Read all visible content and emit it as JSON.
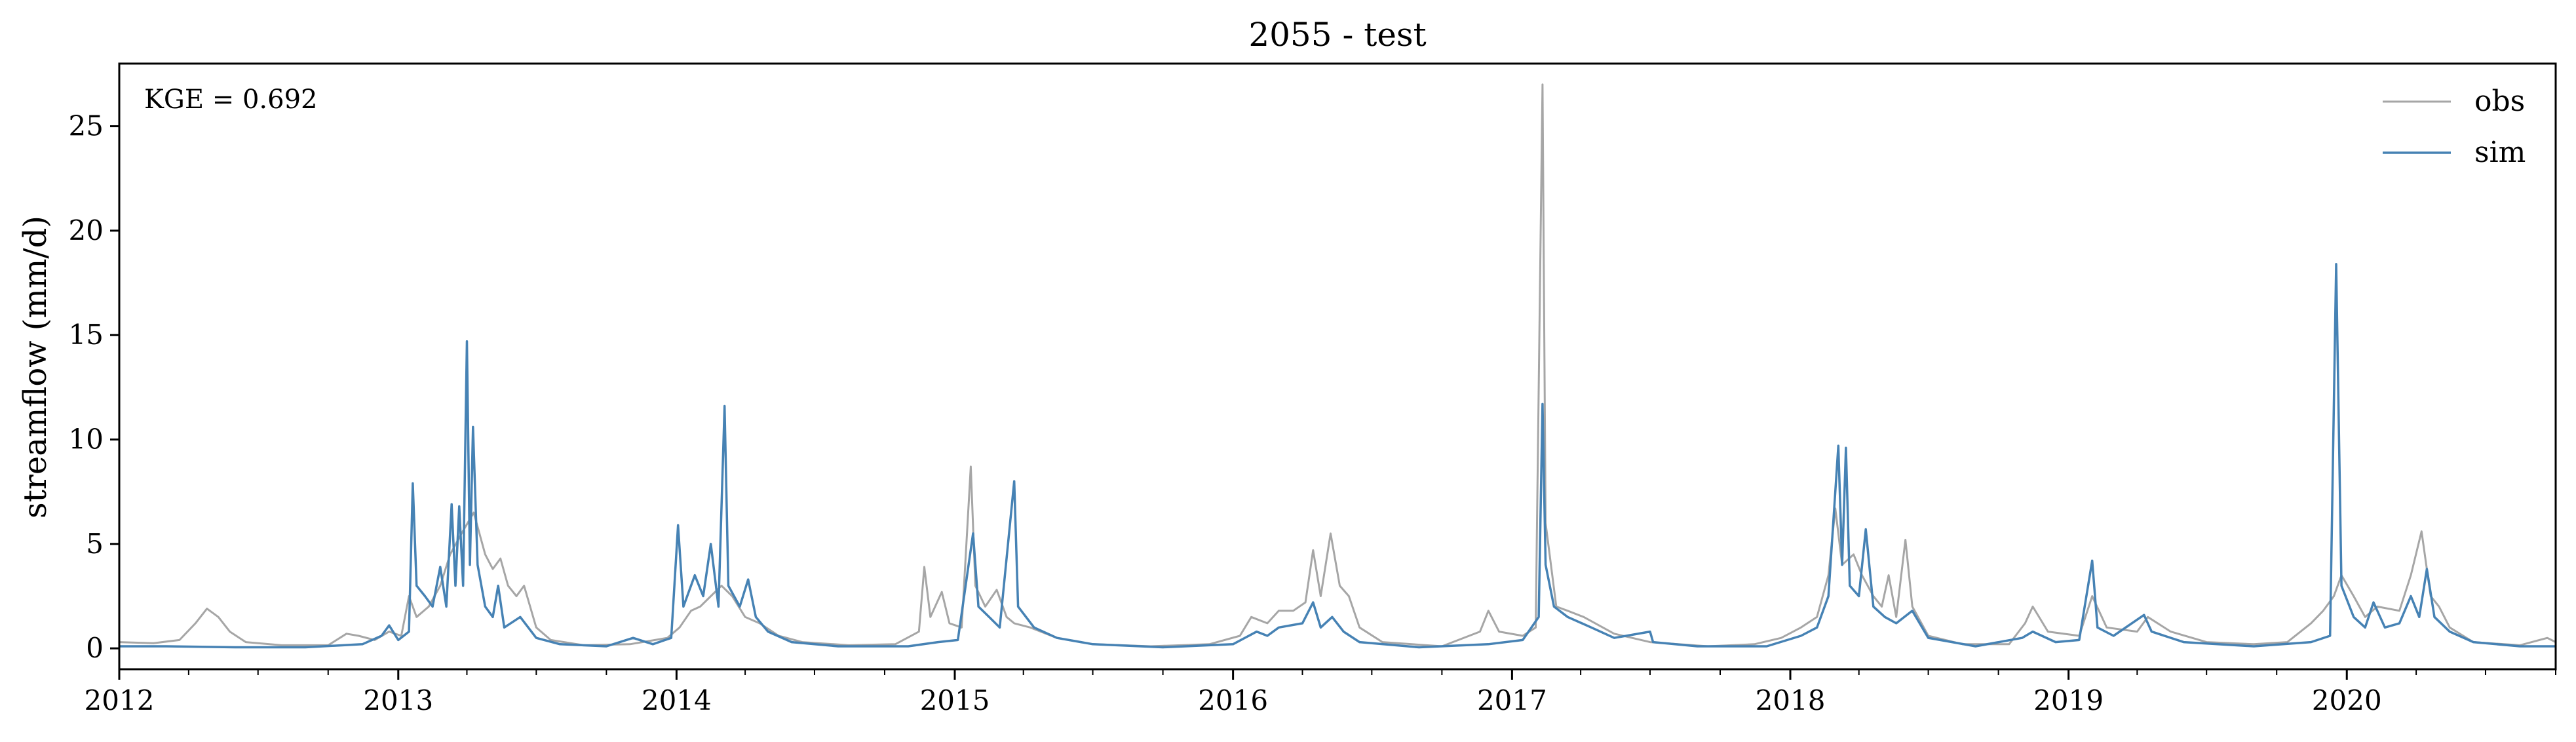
{
  "chart_data": {
    "type": "line",
    "title": "2055 - test",
    "xlabel": "",
    "ylabel": "streamflow (mm/d)",
    "annotation": "KGE = 0.692",
    "x_axis_type": "date",
    "xlim": [
      "2012-01-01",
      "2020-10-01"
    ],
    "ylim": [
      -1,
      28
    ],
    "x_ticks": [
      "2012",
      "2013",
      "2014",
      "2015",
      "2016",
      "2017",
      "2018",
      "2019",
      "2020"
    ],
    "y_ticks": [
      0,
      5,
      10,
      15,
      20,
      25
    ],
    "grid": false,
    "legend_position": "top-right",
    "series": [
      {
        "name": "obs",
        "color": "#a6a6a6",
        "points": [
          [
            "2012-01-01",
            0.3
          ],
          [
            "2012-02-15",
            0.25
          ],
          [
            "2012-03-20",
            0.4
          ],
          [
            "2012-04-10",
            1.2
          ],
          [
            "2012-04-25",
            1.9
          ],
          [
            "2012-05-10",
            1.5
          ],
          [
            "2012-05-25",
            0.8
          ],
          [
            "2012-06-15",
            0.3
          ],
          [
            "2012-08-01",
            0.15
          ],
          [
            "2012-10-01",
            0.15
          ],
          [
            "2012-10-25",
            0.7
          ],
          [
            "2012-11-10",
            0.6
          ],
          [
            "2012-12-01",
            0.4
          ],
          [
            "2012-12-20",
            0.8
          ],
          [
            "2013-01-05",
            0.6
          ],
          [
            "2013-01-15",
            2.5
          ],
          [
            "2013-01-25",
            1.5
          ],
          [
            "2013-02-10",
            2.0
          ],
          [
            "2013-02-25",
            3.0
          ],
          [
            "2013-03-10",
            4.5
          ],
          [
            "2013-03-25",
            5.5
          ],
          [
            "2013-04-10",
            6.5
          ],
          [
            "2013-04-25",
            4.5
          ],
          [
            "2013-05-05",
            3.8
          ],
          [
            "2013-05-15",
            4.3
          ],
          [
            "2013-05-25",
            3.0
          ],
          [
            "2013-06-05",
            2.5
          ],
          [
            "2013-06-15",
            3.0
          ],
          [
            "2013-07-01",
            1.0
          ],
          [
            "2013-07-20",
            0.4
          ],
          [
            "2013-09-01",
            0.15
          ],
          [
            "2013-11-01",
            0.2
          ],
          [
            "2013-12-20",
            0.5
          ],
          [
            "2014-01-05",
            1.0
          ],
          [
            "2014-01-20",
            1.8
          ],
          [
            "2014-02-01",
            2.0
          ],
          [
            "2014-02-15",
            2.5
          ],
          [
            "2014-03-01",
            3.0
          ],
          [
            "2014-03-15",
            2.5
          ],
          [
            "2014-04-01",
            1.5
          ],
          [
            "2014-04-20",
            1.2
          ],
          [
            "2014-05-15",
            0.6
          ],
          [
            "2014-06-15",
            0.3
          ],
          [
            "2014-08-15",
            0.15
          ],
          [
            "2014-10-15",
            0.2
          ],
          [
            "2014-11-15",
            0.8
          ],
          [
            "2014-11-22",
            3.9
          ],
          [
            "2014-11-30",
            1.5
          ],
          [
            "2014-12-15",
            2.7
          ],
          [
            "2014-12-25",
            1.2
          ],
          [
            "2015-01-10",
            1.0
          ],
          [
            "2015-01-22",
            8.7
          ],
          [
            "2015-01-28",
            3.0
          ],
          [
            "2015-02-10",
            2.0
          ],
          [
            "2015-02-25",
            2.8
          ],
          [
            "2015-03-10",
            1.5
          ],
          [
            "2015-03-20",
            1.2
          ],
          [
            "2015-04-10",
            1.0
          ],
          [
            "2015-05-15",
            0.5
          ],
          [
            "2015-07-01",
            0.2
          ],
          [
            "2015-09-15",
            0.1
          ],
          [
            "2015-12-01",
            0.2
          ],
          [
            "2016-01-10",
            0.6
          ],
          [
            "2016-01-25",
            1.5
          ],
          [
            "2016-02-15",
            1.2
          ],
          [
            "2016-03-01",
            1.8
          ],
          [
            "2016-03-20",
            1.8
          ],
          [
            "2016-04-05",
            2.2
          ],
          [
            "2016-04-15",
            4.7
          ],
          [
            "2016-04-25",
            2.5
          ],
          [
            "2016-05-08",
            5.5
          ],
          [
            "2016-05-20",
            3.0
          ],
          [
            "2016-06-01",
            2.5
          ],
          [
            "2016-06-15",
            1.0
          ],
          [
            "2016-07-15",
            0.3
          ],
          [
            "2016-10-01",
            0.1
          ],
          [
            "2016-11-20",
            0.8
          ],
          [
            "2016-12-01",
            1.8
          ],
          [
            "2016-12-15",
            0.8
          ],
          [
            "2017-01-15",
            0.6
          ],
          [
            "2017-02-01",
            1.0
          ],
          [
            "2017-02-10",
            27.0
          ],
          [
            "2017-02-14",
            6.0
          ],
          [
            "2017-02-28",
            2.0
          ],
          [
            "2017-03-15",
            1.8
          ],
          [
            "2017-04-05",
            1.5
          ],
          [
            "2017-05-15",
            0.7
          ],
          [
            "2017-07-01",
            0.3
          ],
          [
            "2017-09-15",
            0.1
          ],
          [
            "2017-11-15",
            0.2
          ],
          [
            "2017-12-20",
            0.5
          ],
          [
            "2018-01-15",
            1.0
          ],
          [
            "2018-02-05",
            1.5
          ],
          [
            "2018-02-20",
            3.5
          ],
          [
            "2018-03-01",
            6.7
          ],
          [
            "2018-03-10",
            4.0
          ],
          [
            "2018-03-25",
            4.5
          ],
          [
            "2018-04-05",
            3.5
          ],
          [
            "2018-04-20",
            2.5
          ],
          [
            "2018-05-01",
            2.0
          ],
          [
            "2018-05-10",
            3.5
          ],
          [
            "2018-05-20",
            1.5
          ],
          [
            "2018-06-01",
            5.2
          ],
          [
            "2018-06-10",
            2.0
          ],
          [
            "2018-07-01",
            0.6
          ],
          [
            "2018-08-15",
            0.2
          ],
          [
            "2018-10-15",
            0.2
          ],
          [
            "2018-11-05",
            1.2
          ],
          [
            "2018-11-15",
            2.0
          ],
          [
            "2018-12-05",
            0.8
          ],
          [
            "2019-01-15",
            0.6
          ],
          [
            "2019-02-01",
            2.5
          ],
          [
            "2019-02-20",
            1.0
          ],
          [
            "2019-04-01",
            0.8
          ],
          [
            "2019-04-15",
            1.5
          ],
          [
            "2019-05-15",
            0.8
          ],
          [
            "2019-07-01",
            0.3
          ],
          [
            "2019-09-01",
            0.2
          ],
          [
            "2019-10-15",
            0.3
          ],
          [
            "2019-11-15",
            1.2
          ],
          [
            "2019-12-01",
            1.8
          ],
          [
            "2019-12-15",
            2.5
          ],
          [
            "2019-12-25",
            3.5
          ],
          [
            "2020-01-10",
            2.5
          ],
          [
            "2020-01-25",
            1.5
          ],
          [
            "2020-02-10",
            2.0
          ],
          [
            "2020-03-10",
            1.8
          ],
          [
            "2020-03-25",
            3.5
          ],
          [
            "2020-04-08",
            5.6
          ],
          [
            "2020-04-20",
            2.5
          ],
          [
            "2020-05-01",
            2.0
          ],
          [
            "2020-05-15",
            1.0
          ],
          [
            "2020-06-15",
            0.3
          ],
          [
            "2020-08-15",
            0.15
          ],
          [
            "2020-09-20",
            0.5
          ],
          [
            "2020-10-01",
            0.3
          ]
        ]
      },
      {
        "name": "sim",
        "color": "#4682b4",
        "points": [
          [
            "2012-01-01",
            0.1
          ],
          [
            "2012-03-01",
            0.1
          ],
          [
            "2012-06-01",
            0.05
          ],
          [
            "2012-09-01",
            0.05
          ],
          [
            "2012-11-15",
            0.2
          ],
          [
            "2012-12-10",
            0.6
          ],
          [
            "2012-12-20",
            1.1
          ],
          [
            "2013-01-01",
            0.4
          ],
          [
            "2013-01-15",
            0.8
          ],
          [
            "2013-01-20",
            7.9
          ],
          [
            "2013-01-25",
            3.0
          ],
          [
            "2013-02-05",
            2.5
          ],
          [
            "2013-02-15",
            2.0
          ],
          [
            "2013-02-25",
            3.9
          ],
          [
            "2013-03-05",
            2.0
          ],
          [
            "2013-03-12",
            6.9
          ],
          [
            "2013-03-17",
            3.0
          ],
          [
            "2013-03-22",
            6.8
          ],
          [
            "2013-03-27",
            3.0
          ],
          [
            "2013-04-01",
            14.7
          ],
          [
            "2013-04-05",
            4.0
          ],
          [
            "2013-04-09",
            10.6
          ],
          [
            "2013-04-15",
            4.0
          ],
          [
            "2013-04-25",
            2.0
          ],
          [
            "2013-05-05",
            1.5
          ],
          [
            "2013-05-12",
            3.0
          ],
          [
            "2013-05-20",
            1.0
          ],
          [
            "2013-06-10",
            1.5
          ],
          [
            "2013-07-01",
            0.5
          ],
          [
            "2013-08-01",
            0.2
          ],
          [
            "2013-10-01",
            0.1
          ],
          [
            "2013-11-05",
            0.5
          ],
          [
            "2013-12-01",
            0.2
          ],
          [
            "2013-12-25",
            0.5
          ],
          [
            "2014-01-03",
            5.9
          ],
          [
            "2014-01-10",
            2.0
          ],
          [
            "2014-01-25",
            3.5
          ],
          [
            "2014-02-05",
            2.5
          ],
          [
            "2014-02-15",
            5.0
          ],
          [
            "2014-02-25",
            2.0
          ],
          [
            "2014-03-05",
            11.6
          ],
          [
            "2014-03-10",
            3.0
          ],
          [
            "2014-03-25",
            2.0
          ],
          [
            "2014-04-05",
            3.3
          ],
          [
            "2014-04-15",
            1.5
          ],
          [
            "2014-05-01",
            0.8
          ],
          [
            "2014-06-01",
            0.3
          ],
          [
            "2014-08-01",
            0.1
          ],
          [
            "2014-11-01",
            0.1
          ],
          [
            "2014-12-10",
            0.3
          ],
          [
            "2015-01-05",
            0.4
          ],
          [
            "2015-01-25",
            5.5
          ],
          [
            "2015-02-01",
            2.0
          ],
          [
            "2015-02-15",
            1.5
          ],
          [
            "2015-03-01",
            1.0
          ],
          [
            "2015-03-20",
            8.0
          ],
          [
            "2015-03-25",
            2.0
          ],
          [
            "2015-04-15",
            1.0
          ],
          [
            "2015-05-15",
            0.5
          ],
          [
            "2015-07-01",
            0.2
          ],
          [
            "2015-10-01",
            0.05
          ],
          [
            "2016-01-01",
            0.2
          ],
          [
            "2016-02-01",
            0.8
          ],
          [
            "2016-02-15",
            0.6
          ],
          [
            "2016-03-01",
            1.0
          ],
          [
            "2016-04-01",
            1.2
          ],
          [
            "2016-04-15",
            2.2
          ],
          [
            "2016-04-25",
            1.0
          ],
          [
            "2016-05-10",
            1.5
          ],
          [
            "2016-05-25",
            0.8
          ],
          [
            "2016-06-15",
            0.3
          ],
          [
            "2016-09-01",
            0.05
          ],
          [
            "2016-12-01",
            0.2
          ],
          [
            "2017-01-15",
            0.4
          ],
          [
            "2017-02-05",
            1.5
          ],
          [
            "2017-02-10",
            11.7
          ],
          [
            "2017-02-14",
            4.0
          ],
          [
            "2017-02-25",
            2.0
          ],
          [
            "2017-03-15",
            1.5
          ],
          [
            "2017-04-15",
            1.0
          ],
          [
            "2017-05-15",
            0.5
          ],
          [
            "2017-07-01",
            0.8
          ],
          [
            "2017-07-05",
            0.3
          ],
          [
            "2017-09-01",
            0.1
          ],
          [
            "2017-12-01",
            0.1
          ],
          [
            "2018-01-15",
            0.6
          ],
          [
            "2018-02-05",
            1.0
          ],
          [
            "2018-02-20",
            2.5
          ],
          [
            "2018-03-05",
            9.7
          ],
          [
            "2018-03-10",
            4.0
          ],
          [
            "2018-03-15",
            9.6
          ],
          [
            "2018-03-20",
            3.0
          ],
          [
            "2018-04-01",
            2.5
          ],
          [
            "2018-04-10",
            5.7
          ],
          [
            "2018-04-20",
            2.0
          ],
          [
            "2018-05-05",
            1.5
          ],
          [
            "2018-05-20",
            1.2
          ],
          [
            "2018-06-10",
            1.8
          ],
          [
            "2018-07-01",
            0.5
          ],
          [
            "2018-09-01",
            0.1
          ],
          [
            "2018-11-01",
            0.5
          ],
          [
            "2018-11-15",
            0.8
          ],
          [
            "2018-12-15",
            0.3
          ],
          [
            "2019-01-15",
            0.4
          ],
          [
            "2019-02-01",
            4.2
          ],
          [
            "2019-02-08",
            1.0
          ],
          [
            "2019-03-01",
            0.6
          ],
          [
            "2019-04-10",
            1.6
          ],
          [
            "2019-04-20",
            0.8
          ],
          [
            "2019-06-01",
            0.3
          ],
          [
            "2019-09-01",
            0.1
          ],
          [
            "2019-11-15",
            0.3
          ],
          [
            "2019-12-10",
            0.6
          ],
          [
            "2019-12-18",
            18.4
          ],
          [
            "2019-12-25",
            3.0
          ],
          [
            "2020-01-10",
            1.5
          ],
          [
            "2020-01-25",
            1.0
          ],
          [
            "2020-02-05",
            2.2
          ],
          [
            "2020-02-20",
            1.0
          ],
          [
            "2020-03-10",
            1.2
          ],
          [
            "2020-03-25",
            2.5
          ],
          [
            "2020-04-05",
            1.5
          ],
          [
            "2020-04-15",
            3.8
          ],
          [
            "2020-04-25",
            1.5
          ],
          [
            "2020-05-15",
            0.8
          ],
          [
            "2020-06-15",
            0.3
          ],
          [
            "2020-08-15",
            0.1
          ],
          [
            "2020-10-01",
            0.1
          ]
        ]
      }
    ]
  }
}
